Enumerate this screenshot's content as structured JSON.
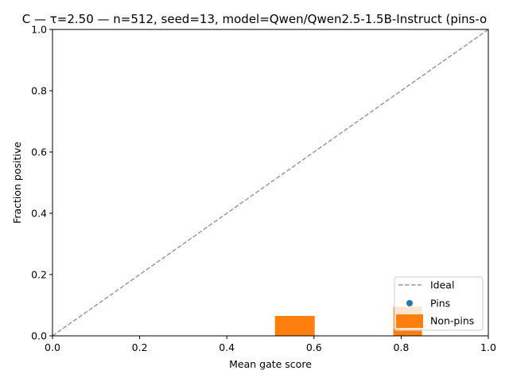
{
  "chart_data": {
    "type": "scatter",
    "title": "C — τ=2.50 — n=512, seed=13, model=Qwen/Qwen2.5-1.5B-Instruct (pins-o",
    "xlabel": "Mean gate score",
    "ylabel": "Fraction positive",
    "xlim": [
      0.0,
      1.0
    ],
    "ylim": [
      0.0,
      1.0
    ],
    "xticks": [
      "0.0",
      "0.2",
      "0.4",
      "0.6",
      "0.8",
      "1.0"
    ],
    "yticks": [
      "0.0",
      "0.2",
      "0.4",
      "0.6",
      "0.8",
      "1.0"
    ],
    "grid": false,
    "legend_position": "lower-right",
    "series": [
      {
        "name": "Ideal",
        "style": "dashed-line",
        "color": "#999999",
        "x": [
          0.0,
          1.0
        ],
        "y": [
          0.0,
          1.0
        ]
      },
      {
        "name": "Pins",
        "style": "point",
        "color": "#1f77b4",
        "x": [],
        "y": []
      },
      {
        "name": "Non-pins",
        "style": "square-marker",
        "color": "#ff7f0e",
        "x": [
          0.556,
          0.815
        ],
        "y": [
          0.0,
          0.0
        ],
        "top": [
          0.065,
          0.095
        ]
      }
    ]
  }
}
